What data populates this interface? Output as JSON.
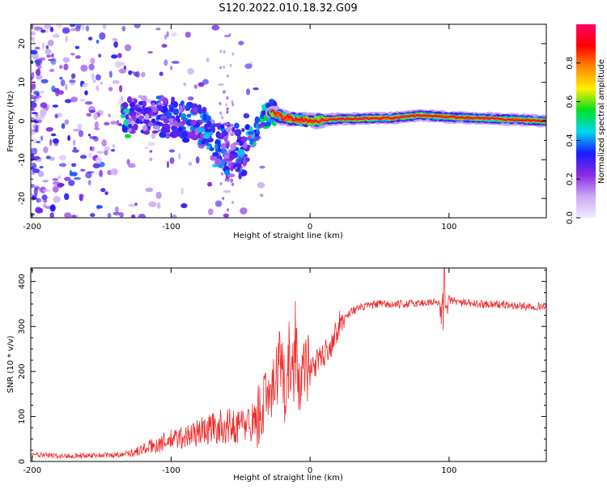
{
  "figure_title": "S120.2022.010.18.32.G09",
  "colors": {
    "snr_line": "#ee2b2b",
    "frame": "#000000",
    "background": "#ffffff"
  },
  "chart_data": [
    {
      "type": "heatmap",
      "title": "S120.2022.010.18.32.G09",
      "xlabel": "Height of straight line (km)",
      "ylabel": "Frequency (Hz)",
      "xlim": [
        -201,
        170
      ],
      "ylim": [
        -25,
        25
      ],
      "xticks": [
        -200,
        -100,
        0,
        100
      ],
      "yticks": [
        -20,
        -10,
        0,
        10,
        20
      ],
      "colorbar": {
        "label": "Normalized spectral amplitude",
        "range": [
          0,
          1
        ],
        "ticks": [
          0.0,
          0.2,
          0.4,
          0.6,
          0.8
        ],
        "colormap": [
          "#f2ecff",
          "#c9a8f5",
          "#8a2be2",
          "#1a1aff",
          "#00d8f0",
          "#00e020",
          "#fff000",
          "#ff8a00",
          "#ff0000",
          "#ff0066"
        ]
      },
      "ridge": [
        {
          "x": -130,
          "f": 2.0,
          "a": 0.25
        },
        {
          "x": -110,
          "f": 1.5,
          "a": 0.3
        },
        {
          "x": -90,
          "f": 0.0,
          "a": 0.35
        },
        {
          "x": -70,
          "f": -3.0,
          "a": 0.35
        },
        {
          "x": -55,
          "f": -6.0,
          "a": 0.3
        },
        {
          "x": -40,
          "f": -4.0,
          "a": 0.4
        },
        {
          "x": -30,
          "f": 2.5,
          "a": 0.45
        },
        {
          "x": -20,
          "f": 1.0,
          "a": 0.6
        },
        {
          "x": 0,
          "f": 0.0,
          "a": 0.75
        },
        {
          "x": 20,
          "f": 0.5,
          "a": 0.85
        },
        {
          "x": 60,
          "f": 0.8,
          "a": 0.9
        },
        {
          "x": 80,
          "f": 1.5,
          "a": 0.85
        },
        {
          "x": 100,
          "f": 1.0,
          "a": 0.9
        },
        {
          "x": 140,
          "f": 0.5,
          "a": 0.8
        },
        {
          "x": 170,
          "f": 0.0,
          "a": 0.6
        }
      ]
    },
    {
      "type": "line",
      "title": "",
      "xlabel": "Height of straight line (km)",
      "ylabel": "SNR (10 * v/v)",
      "xlim": [
        -201,
        170
      ],
      "ylim": [
        0,
        430
      ],
      "xticks": [
        -200,
        -100,
        0,
        100
      ],
      "yticks": [
        0,
        100,
        200,
        300,
        400
      ],
      "series": [
        {
          "name": "SNR",
          "x": [
            -201,
            -180,
            -160,
            -140,
            -125,
            -110,
            -100,
            -90,
            -80,
            -70,
            -60,
            -50,
            -40,
            -35,
            -30,
            -25,
            -20,
            -17,
            -15,
            -12,
            -10,
            -8,
            -5,
            -3,
            0,
            5,
            10,
            15,
            20,
            25,
            30,
            40,
            50,
            60,
            70,
            80,
            90,
            95,
            97,
            100,
            110,
            120,
            130,
            140,
            150,
            160,
            170
          ],
          "values": [
            15,
            12,
            14,
            14,
            22,
            38,
            48,
            55,
            65,
            75,
            78,
            80,
            90,
            110,
            150,
            200,
            220,
            120,
            240,
            180,
            250,
            150,
            210,
            200,
            210,
            220,
            240,
            260,
            300,
            320,
            335,
            345,
            350,
            348,
            350,
            352,
            355,
            350,
            340,
            360,
            352,
            350,
            350,
            348,
            345,
            345,
            345
          ]
        }
      ]
    }
  ]
}
